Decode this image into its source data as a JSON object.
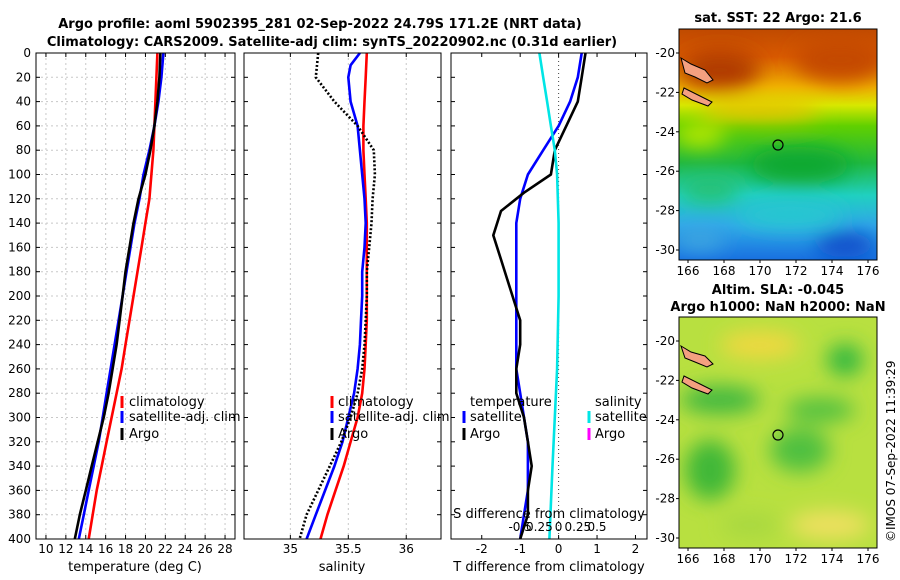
{
  "header": {
    "title_line1": "Argo profile: aoml 5902395_281 02-Sep-2022 24.79S 171.2E (NRT data)",
    "title_line2": "Climatology: CARS2009. Satellite-adj clim: synTS_20220902.nc (0.31d earlier)"
  },
  "colors": {
    "climatology": "#ff0000",
    "satellite": "#0000ff",
    "argo": "#000000",
    "sal_satellite": "#00e5e5",
    "sal_argo": "#ff00ff"
  },
  "side_text": "©IMOS 07-Sep-2022 11:39:29",
  "chart_data": [
    {
      "type": "line",
      "name": "temperature-profile",
      "xlabel": "temperature (deg C)",
      "xlim": [
        9,
        29
      ],
      "xticks": [
        "10",
        "12",
        "14",
        "16",
        "18",
        "20",
        "22",
        "24",
        "26",
        "28"
      ],
      "ylim": [
        0,
        400
      ],
      "yticks": [
        "0",
        "20",
        "40",
        "60",
        "80",
        "100",
        "120",
        "140",
        "160",
        "180",
        "200",
        "220",
        "240",
        "260",
        "280",
        "300",
        "320",
        "340",
        "360",
        "380",
        "400"
      ],
      "grid": true,
      "legend": [
        "climatology",
        "satellite-adj. clim",
        "Argo"
      ],
      "series": [
        {
          "name": "climatology",
          "depth": [
            0,
            20,
            40,
            60,
            80,
            100,
            120,
            140,
            160,
            180,
            200,
            220,
            240,
            260,
            280,
            300,
            320,
            340,
            360,
            380,
            400
          ],
          "values": [
            21.2,
            21.1,
            21.0,
            20.9,
            20.8,
            20.6,
            20.4,
            20.0,
            19.6,
            19.2,
            18.8,
            18.4,
            18.0,
            17.6,
            17.1,
            16.6,
            16.1,
            15.6,
            15.1,
            14.7,
            14.3
          ]
        },
        {
          "name": "satellite-adj. clim",
          "depth": [
            0,
            20,
            40,
            60,
            80,
            100,
            120,
            140,
            160,
            180,
            200,
            220,
            240,
            260,
            280,
            300,
            320,
            340,
            360,
            380,
            400
          ],
          "values": [
            21.8,
            21.6,
            21.3,
            20.9,
            20.4,
            19.8,
            19.4,
            18.9,
            18.5,
            18.1,
            17.7,
            17.3,
            16.9,
            16.5,
            16.1,
            15.7,
            15.3,
            14.8,
            14.3,
            13.8,
            13.3
          ]
        },
        {
          "name": "Argo",
          "depth": [
            0,
            20,
            40,
            60,
            80,
            100,
            120,
            140,
            160,
            180,
            200,
            220,
            240,
            260,
            280,
            300,
            320,
            340,
            360,
            380,
            400
          ],
          "values": [
            21.5,
            21.4,
            21.2,
            20.9,
            20.5,
            20.0,
            19.3,
            18.8,
            18.4,
            18.0,
            17.7,
            17.4,
            17.1,
            16.7,
            16.3,
            15.8,
            15.2,
            14.6,
            14.0,
            13.4,
            12.9
          ]
        }
      ]
    },
    {
      "type": "line",
      "name": "salinity-profile",
      "xlabel": "salinity",
      "xlim": [
        34.6,
        36.3
      ],
      "xticks": [
        "35",
        "35.5",
        "36"
      ],
      "ylim": [
        0,
        400
      ],
      "grid": true,
      "legend": [
        "climatology",
        "satellite-adj. clim",
        "Argo"
      ],
      "series": [
        {
          "name": "climatology",
          "depth": [
            0,
            20,
            40,
            60,
            80,
            100,
            120,
            140,
            160,
            180,
            200,
            220,
            240,
            260,
            280,
            300,
            320,
            340,
            360,
            380,
            400
          ],
          "values": [
            35.66,
            35.65,
            35.64,
            35.63,
            35.63,
            35.64,
            35.65,
            35.66,
            35.66,
            35.66,
            35.66,
            35.66,
            35.65,
            35.64,
            35.62,
            35.58,
            35.52,
            35.46,
            35.39,
            35.32,
            35.26
          ]
        },
        {
          "name": "satellite-adj. clim",
          "depth": [
            0,
            10,
            20,
            40,
            60,
            80,
            100,
            120,
            140,
            160,
            180,
            200,
            220,
            240,
            260,
            280,
            300,
            320,
            340,
            360,
            380,
            400
          ],
          "values": [
            35.6,
            35.52,
            35.5,
            35.52,
            35.58,
            35.6,
            35.62,
            35.64,
            35.65,
            35.64,
            35.62,
            35.62,
            35.61,
            35.6,
            35.58,
            35.55,
            35.5,
            35.45,
            35.38,
            35.3,
            35.22,
            35.14
          ]
        },
        {
          "name": "Argo",
          "depth": [
            0,
            20,
            30,
            40,
            60,
            80,
            100,
            120,
            140,
            160,
            180,
            200,
            220,
            240,
            260,
            280,
            300,
            320,
            340,
            360,
            380,
            400
          ],
          "values": [
            35.24,
            35.22,
            35.3,
            35.38,
            35.58,
            35.72,
            35.73,
            35.71,
            35.7,
            35.68,
            35.66,
            35.66,
            35.65,
            35.64,
            35.62,
            35.58,
            35.52,
            35.44,
            35.34,
            35.24,
            35.14,
            35.08
          ]
        }
      ]
    },
    {
      "type": "line",
      "name": "difference-profile",
      "xlabel": "T difference from climatology",
      "xlabel_top": "S difference from climatology",
      "xlim": [
        -2.8,
        2.3
      ],
      "xticks": [
        "-2",
        "-1",
        "0",
        "1",
        "2"
      ],
      "xticks_top": [
        "-0.5",
        "0.25",
        "0",
        "0.25",
        "0.5"
      ],
      "ylim": [
        0,
        400
      ],
      "legend_temperature_title": "temperature",
      "legend_salinity_title": "salinity",
      "legend_temperature": [
        "satellite",
        "Argo"
      ],
      "legend_salinity": [
        "satellite",
        "Argo"
      ],
      "series": [
        {
          "name": "T satellite",
          "depth": [
            0,
            20,
            40,
            60,
            80,
            100,
            120,
            140,
            160,
            180,
            200,
            220,
            240,
            260,
            280,
            300,
            320,
            340,
            360,
            380,
            400
          ],
          "values": [
            0.6,
            0.5,
            0.3,
            0.0,
            -0.4,
            -0.8,
            -1.0,
            -1.1,
            -1.1,
            -1.1,
            -1.1,
            -1.1,
            -1.1,
            -1.1,
            -1.0,
            -0.9,
            -0.8,
            -0.8,
            -0.8,
            -0.9,
            -1.0
          ]
        },
        {
          "name": "T Argo",
          "depth": [
            0,
            20,
            40,
            60,
            80,
            100,
            115,
            130,
            150,
            170,
            200,
            220,
            240,
            260,
            280,
            300,
            320,
            340,
            360,
            380,
            400
          ],
          "values": [
            0.7,
            0.6,
            0.5,
            0.2,
            -0.1,
            -0.2,
            -0.9,
            -1.5,
            -1.7,
            -1.5,
            -1.2,
            -1.0,
            -1.0,
            -1.1,
            -1.1,
            -0.9,
            -0.8,
            -0.7,
            -0.8,
            -0.8,
            -1.0
          ]
        },
        {
          "name": "S satellite",
          "depth": [
            0,
            20,
            40,
            60,
            80,
            100,
            140,
            200,
            260,
            300,
            340,
            400
          ],
          "values": [
            -0.25,
            -0.2,
            -0.15,
            -0.1,
            -0.05,
            -0.02,
            0.0,
            0.0,
            -0.02,
            -0.05,
            -0.08,
            -0.12
          ]
        }
      ]
    }
  ],
  "maps": {
    "sst": {
      "title": "sat. SST: 22 Argo: 21.6",
      "yticks": [
        "-20",
        "-22",
        "-24",
        "-26",
        "-28",
        "-30"
      ],
      "xticks": [
        "166",
        "168",
        "170",
        "172",
        "174",
        "176"
      ]
    },
    "sla": {
      "title_line1": "Altim. SLA: -0.045",
      "title_line2": "Argo h1000: NaN h2000: NaN",
      "yticks": [
        "-20",
        "-22",
        "-24",
        "-26",
        "-28",
        "-30"
      ],
      "xticks": [
        "166",
        "168",
        "170",
        "172",
        "174",
        "176"
      ]
    }
  }
}
